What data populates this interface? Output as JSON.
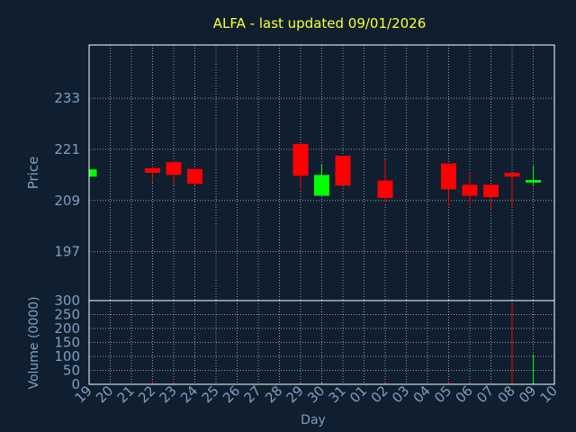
{
  "colors": {
    "background": "#0f1f30",
    "frame": "#ffffff",
    "grid": "#ffffff",
    "title": "#ffff33",
    "axis_text": "#7f9fbf",
    "up": "#00ff00",
    "down": "#ff0000"
  },
  "chart_data": {
    "type": "candlestick",
    "title": "ALFA - last updated 09/01/2026",
    "xlabel": "Day",
    "x_ticks": [
      "19",
      "20",
      "21",
      "22",
      "23",
      "24",
      "25",
      "26",
      "27",
      "28",
      "29",
      "30",
      "31",
      "01",
      "02",
      "03",
      "04",
      "05",
      "06",
      "07",
      "08",
      "09",
      "10"
    ],
    "price": {
      "ylabel": "Price",
      "yticks": [
        "233",
        "221",
        "209",
        "197"
      ],
      "ylim": [
        185.5,
        245.5
      ],
      "candles": [
        {
          "day": "19",
          "open": 214.6,
          "high": 216.3,
          "low": 214.6,
          "close": 216.3
        },
        {
          "day": "22",
          "open": 216.6,
          "high": 217.0,
          "low": 213.2,
          "close": 215.5
        },
        {
          "day": "23",
          "open": 218.0,
          "high": 218.3,
          "low": 212.6,
          "close": 215.0
        },
        {
          "day": "24",
          "open": 216.4,
          "high": 216.4,
          "low": 212.5,
          "close": 212.9
        },
        {
          "day": "29",
          "open": 222.3,
          "high": 222.3,
          "low": 211.7,
          "close": 214.8
        },
        {
          "day": "30",
          "open": 210.1,
          "high": 217.5,
          "low": 210.1,
          "close": 215.0
        },
        {
          "day": "31",
          "open": 219.5,
          "high": 219.5,
          "low": 212.5,
          "close": 212.5
        },
        {
          "day": "02",
          "open": 213.7,
          "high": 218.7,
          "low": 208.5,
          "close": 209.6
        },
        {
          "day": "05",
          "open": 217.7,
          "high": 217.7,
          "low": 207.8,
          "close": 211.6
        },
        {
          "day": "06",
          "open": 212.7,
          "high": 215.6,
          "low": 207.8,
          "close": 210.1
        },
        {
          "day": "07",
          "open": 212.7,
          "high": 212.7,
          "low": 206.6,
          "close": 209.8
        },
        {
          "day": "08",
          "open": 215.5,
          "high": 215.5,
          "low": 207.6,
          "close": 214.6
        },
        {
          "day": "09",
          "open": 213.2,
          "high": 217.2,
          "low": 212.6,
          "close": 213.8
        }
      ]
    },
    "volume": {
      "ylabel": "Volume (0000)",
      "yticks": [
        "300",
        "250",
        "200",
        "150",
        "100",
        "50",
        "0"
      ],
      "ylim": [
        0,
        300
      ],
      "bars": [
        {
          "day": "22",
          "value": 12,
          "dir": "down"
        },
        {
          "day": "23",
          "value": 10,
          "dir": "down"
        },
        {
          "day": "29",
          "value": 8,
          "dir": "down"
        },
        {
          "day": "30",
          "value": 6,
          "dir": "up"
        },
        {
          "day": "02",
          "value": 8,
          "dir": "down"
        },
        {
          "day": "05",
          "value": 12,
          "dir": "down"
        },
        {
          "day": "06",
          "value": 8,
          "dir": "down"
        },
        {
          "day": "07",
          "value": 10,
          "dir": "down"
        },
        {
          "day": "08",
          "value": 285,
          "dir": "down"
        },
        {
          "day": "09",
          "value": 105,
          "dir": "up"
        }
      ]
    },
    "grid": true
  }
}
